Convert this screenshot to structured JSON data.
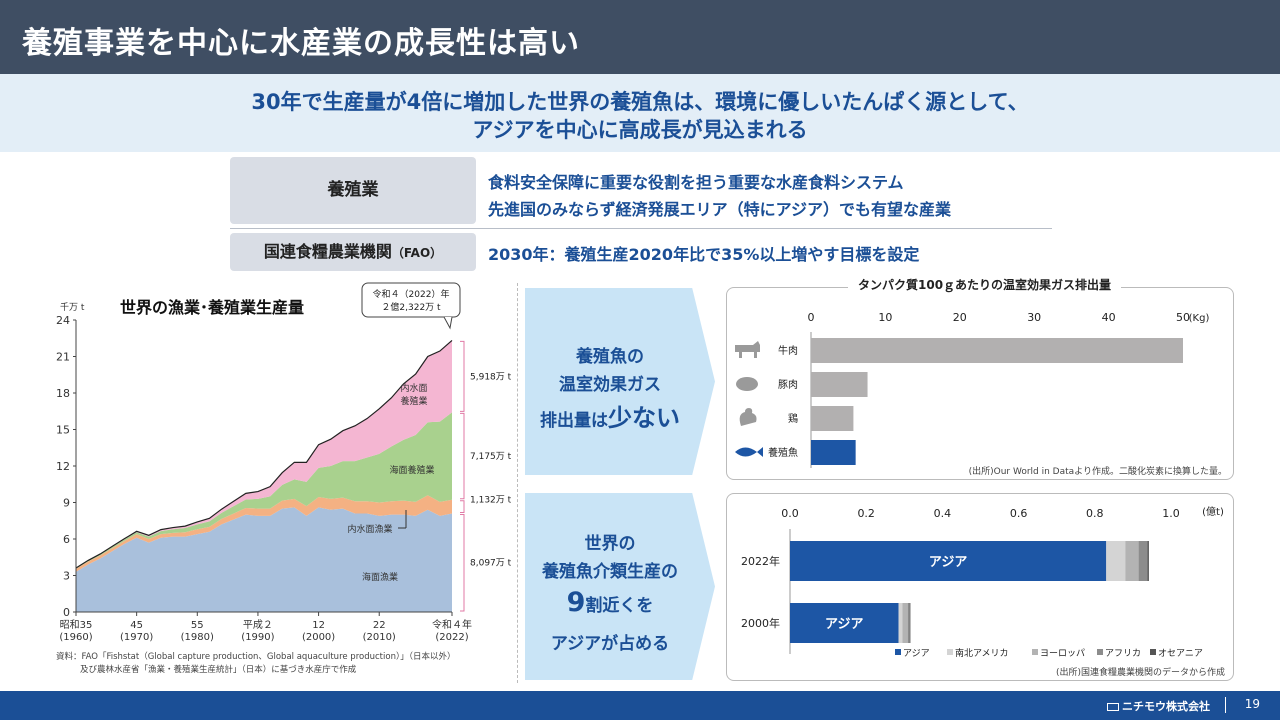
{
  "header": {
    "title": "養殖事業を中心に水産業の成長性は高い"
  },
  "subtitle": {
    "line1": "30年で生産量が4倍に増加した世界の養殖魚は、環境に優しいたんぱく源として、",
    "line2": "アジアを中心に高成長が見込まれる"
  },
  "info": {
    "aquaculture_label": "養殖業",
    "aquaculture_line1": "食料安全保障に重要な役割を担う重要な水産食料システム",
    "aquaculture_line2": "先進国のみならず経済発展エリア（特にアジア）でも有望な産業",
    "fao_label": "国連食糧農業機関",
    "fao_suffix": "（FAO）",
    "fao_text": "2030年：養殖生産2020年比で35%以上増やす目標を設定"
  },
  "callouts": {
    "ghg_line1": "養殖魚の",
    "ghg_line2": "温室効果ガス",
    "ghg_line3a": "排出量は",
    "ghg_line3b": "少ない",
    "asia_line1": "世界の",
    "asia_line2": "養殖魚介類生産の",
    "asia_line3a": "9",
    "asia_line3b": "割近くを",
    "asia_line4": "アジアが占める"
  },
  "chart_data": [
    {
      "type": "area",
      "title": "世界の漁業･養殖業生産量",
      "ylabel": "千万 t",
      "ylim": [
        0,
        24
      ],
      "yticks": [
        "0",
        "3",
        "6",
        "9",
        "12",
        "15",
        "18",
        "21",
        "24"
      ],
      "x": [
        1960,
        1962,
        1964,
        1966,
        1968,
        1970,
        1972,
        1974,
        1976,
        1978,
        1980,
        1982,
        1984,
        1986,
        1988,
        1990,
        1992,
        1994,
        1996,
        1998,
        2000,
        2002,
        2004,
        2006,
        2008,
        2010,
        2012,
        2014,
        2016,
        2018,
        2020,
        2022
      ],
      "xticks": [
        {
          "x": 1960,
          "label": "昭和35",
          "sub": "(1960)"
        },
        {
          "x": 1970,
          "label": "45",
          "sub": "(1970)"
        },
        {
          "x": 1980,
          "label": "55",
          "sub": "(1980)"
        },
        {
          "x": 1990,
          "label": "平成２",
          "sub": "(1990)"
        },
        {
          "x": 2000,
          "label": "12",
          "sub": "(2000)"
        },
        {
          "x": 2010,
          "label": "22",
          "sub": "(2010)"
        },
        {
          "x": 2022,
          "label": "令和４年",
          "sub": "(2022)"
        }
      ],
      "series": [
        {
          "name": "海面漁業",
          "color": "#a9c0dc",
          "values": [
            3.3,
            3.9,
            4.4,
            5.0,
            5.6,
            6.1,
            5.7,
            6.1,
            6.2,
            6.2,
            6.4,
            6.6,
            7.2,
            7.6,
            8.0,
            7.9,
            7.9,
            8.5,
            8.6,
            7.9,
            8.6,
            8.4,
            8.5,
            8.1,
            8.1,
            7.9,
            8.0,
            8.0,
            7.9,
            8.4,
            7.9,
            8.1
          ]
        },
        {
          "name": "内水面漁業",
          "color": "#f4b183",
          "values": [
            0.25,
            0.25,
            0.25,
            0.25,
            0.25,
            0.3,
            0.3,
            0.3,
            0.3,
            0.35,
            0.4,
            0.4,
            0.45,
            0.5,
            0.55,
            0.6,
            0.6,
            0.65,
            0.7,
            0.8,
            0.85,
            0.9,
            0.9,
            1.0,
            1.0,
            1.1,
            1.1,
            1.15,
            1.15,
            1.2,
            1.15,
            1.13
          ]
        },
        {
          "name": "海面養殖業",
          "color": "#a9d18e",
          "values": [
            0.05,
            0.06,
            0.08,
            0.1,
            0.12,
            0.15,
            0.2,
            0.25,
            0.3,
            0.35,
            0.4,
            0.45,
            0.5,
            0.6,
            0.7,
            0.8,
            1.0,
            1.3,
            1.6,
            2.0,
            2.4,
            2.7,
            3.0,
            3.3,
            3.6,
            4.0,
            4.5,
            5.0,
            5.5,
            6.0,
            6.6,
            7.175
          ]
        },
        {
          "name": "内水面養殖業",
          "color": "#f4b6d2",
          "values": [
            0.02,
            0.03,
            0.04,
            0.05,
            0.06,
            0.08,
            0.1,
            0.12,
            0.14,
            0.16,
            0.2,
            0.25,
            0.3,
            0.4,
            0.5,
            0.6,
            0.8,
            1.0,
            1.4,
            1.6,
            1.9,
            2.2,
            2.5,
            2.9,
            3.2,
            3.7,
            4.0,
            4.6,
            5.0,
            5.4,
            5.8,
            5.918
          ]
        }
      ],
      "area_labels": [
        "内水面",
        "養殖業",
        "海面養殖業",
        "内水面漁業",
        "海面漁業"
      ],
      "right_labels": [
        "5,918万 t",
        "7,175万 t",
        "1,132万 t",
        "8,097万 t"
      ],
      "callout_line1": "令和４（2022）年",
      "callout_line2": "２億2,322万 t",
      "source_line1": "資料：FAO「Fishstat（Global capture production、Global aquaculture production）」（日本以外）",
      "source_line2": "及び農林水産省「漁業・養殖業生産統計」（日本）に基づき水産庁で作成"
    },
    {
      "type": "bar",
      "orientation": "horizontal",
      "title": "タンパク質100ｇあたりの温室効果ガス排出量",
      "unit": "(Kg)",
      "xlim": [
        0,
        50
      ],
      "xticks": [
        "0",
        "10",
        "20",
        "30",
        "40",
        "50"
      ],
      "categories": [
        "牛肉",
        "豚肉",
        "鶏",
        "養殖魚"
      ],
      "values": [
        50,
        7.6,
        5.7,
        6.0
      ],
      "colors": [
        "#b2b0b0",
        "#b2b0b0",
        "#b2b0b0",
        "#1d56a5"
      ],
      "icons": [
        "cow-icon",
        "pig-icon",
        "chicken-icon",
        "fish-icon"
      ],
      "note": "(出所)Our World in Dataより作成。二酸化炭素に換算した量。"
    },
    {
      "type": "bar",
      "orientation": "horizontal",
      "stacked": true,
      "unit": "(億t)",
      "xlim": [
        0,
        1.0
      ],
      "xticks": [
        "0.0",
        "0.2",
        "0.4",
        "0.6",
        "0.8",
        "1.0"
      ],
      "categories": [
        "2022年",
        "2000年"
      ],
      "bar_label": "アジア",
      "series": [
        {
          "name": "アジア",
          "color": "#1d56a5",
          "values": [
            0.83,
            0.285
          ]
        },
        {
          "name": "南北アメリカ",
          "color": "#d4d4d4",
          "values": [
            0.05,
            0.01
          ]
        },
        {
          "name": "ヨーロッパ",
          "color": "#b3b3b3",
          "values": [
            0.035,
            0.014
          ]
        },
        {
          "name": "アフリカ",
          "color": "#8c8c8c",
          "values": [
            0.023,
            0.005
          ]
        },
        {
          "name": "オセアニア",
          "color": "#555555",
          "values": [
            0.004,
            0.002
          ]
        }
      ],
      "note": "(出所)国連食糧農業機関のデータから作成"
    }
  ],
  "footer": {
    "company": "ニチモウ株式会社",
    "page": "19"
  }
}
